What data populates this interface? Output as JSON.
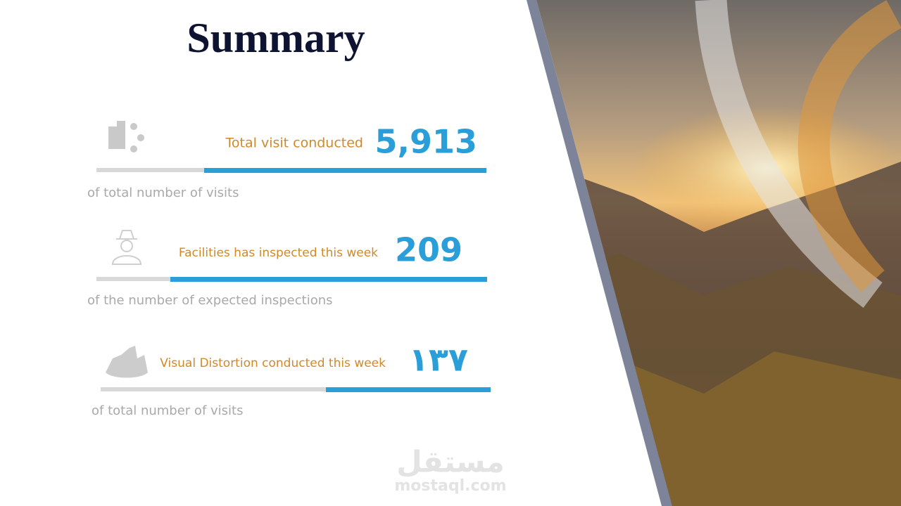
{
  "header": {
    "title": "Summary"
  },
  "items": [
    {
      "label": "Total visit conducted",
      "value": "5,913",
      "note": "of total number of visits"
    },
    {
      "label": "Facilities has inspected this week",
      "value": "209",
      "note": "of the number of expected inspections"
    },
    {
      "label": "Visual Distortion conducted this week",
      "value": "١٣٧",
      "note": "of total number of visits"
    }
  ],
  "watermark": {
    "arabic": "مستقل",
    "latin": "mostaql.com"
  }
}
